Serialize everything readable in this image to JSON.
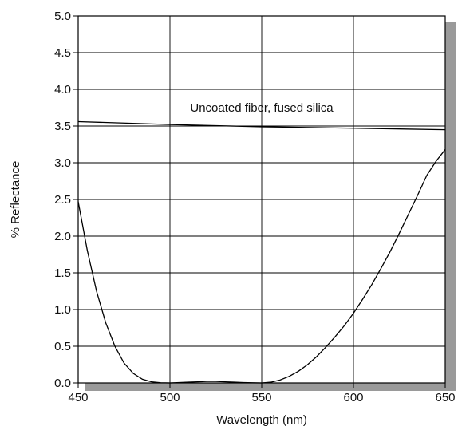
{
  "chart_data": {
    "type": "line",
    "title": "",
    "xlabel": "Wavelength (nm)",
    "ylabel": "% Reflectance",
    "xlim": [
      450,
      650
    ],
    "ylim": [
      0.0,
      5.0
    ],
    "xticks": [
      450,
      500,
      550,
      600,
      650
    ],
    "yticks": [
      0.0,
      0.5,
      1.0,
      1.5,
      2.0,
      2.5,
      3.0,
      3.5,
      4.0,
      4.5,
      5.0
    ],
    "ytick_labels": [
      "0.0",
      "0.5",
      "1.0",
      "1.5",
      "2.0",
      "2.5",
      "3.0",
      "3.5",
      "4.0",
      "4.5",
      "5.0"
    ],
    "grid": true,
    "legend": "none",
    "series": [
      {
        "x": [
          450,
          500,
          550,
          600,
          650
        ],
        "y": [
          3.56,
          3.52,
          3.49,
          3.47,
          3.45
        ]
      },
      {
        "x": [
          450,
          455,
          460,
          465,
          470,
          475,
          480,
          485,
          490,
          495,
          500,
          505,
          510,
          515,
          520,
          525,
          530,
          535,
          540,
          545,
          550,
          555,
          560,
          565,
          570,
          575,
          580,
          585,
          590,
          595,
          600,
          605,
          610,
          615,
          620,
          625,
          630,
          635,
          640,
          645,
          650
        ],
        "y": [
          2.47,
          1.8,
          1.25,
          0.82,
          0.5,
          0.27,
          0.13,
          0.05,
          0.015,
          0.003,
          0.0,
          0.005,
          0.01,
          0.015,
          0.02,
          0.02,
          0.015,
          0.01,
          0.005,
          0.002,
          0.0,
          0.01,
          0.04,
          0.09,
          0.16,
          0.25,
          0.36,
          0.49,
          0.63,
          0.78,
          0.95,
          1.14,
          1.34,
          1.56,
          1.79,
          2.04,
          2.3,
          2.56,
          2.83,
          3.02,
          3.18
        ]
      }
    ],
    "annotations": [
      {
        "text": "Uncoated fiber, fused silica",
        "x": 550,
        "y": 3.75
      }
    ]
  }
}
